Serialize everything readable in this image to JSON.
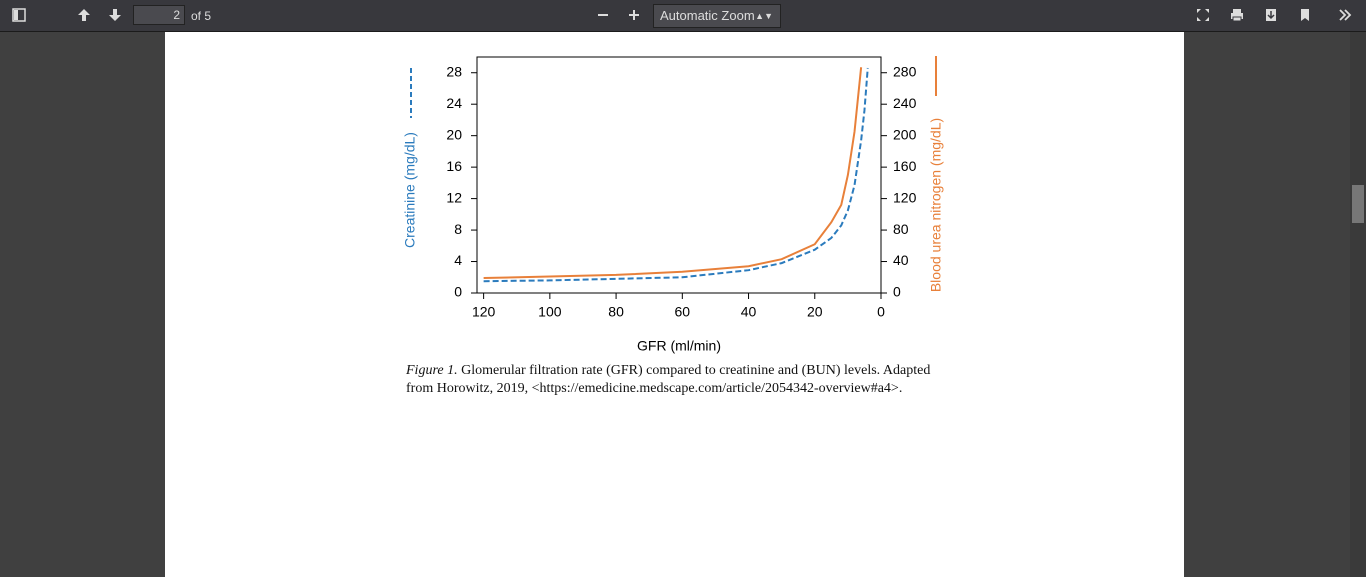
{
  "toolbar": {
    "page_number": "2",
    "page_count": "of 5",
    "zoom": "Automatic Zoom"
  },
  "chart_data": {
    "type": "line",
    "xlabel": "GFR (ml/min)",
    "x": [
      120,
      100,
      80,
      60,
      40,
      30,
      20,
      15,
      12,
      10,
      8,
      6,
      5,
      4
    ],
    "xlim": [
      122,
      0
    ],
    "xticks": [
      120,
      100,
      80,
      60,
      40,
      20,
      0
    ],
    "ylim": [
      0,
      30
    ],
    "yticks": [
      0,
      4,
      8,
      12,
      16,
      20,
      24,
      28
    ],
    "y2lim": [
      0,
      300
    ],
    "y2ticks": [
      0,
      40,
      80,
      120,
      160,
      200,
      240,
      280
    ],
    "series": [
      {
        "name": "Creatinine (mg/dL)",
        "color": "#2b7bbd",
        "dashed": true,
        "values": [
          1.5,
          1.6,
          1.8,
          2.0,
          2.9,
          3.8,
          5.5,
          7.0,
          8.6,
          10.5,
          13.7,
          19.4,
          23.2,
          28.6
        ]
      },
      {
        "name": "Blood urea nitrogen (mg/dL)",
        "color": "#e8803a",
        "axis": "y2",
        "values": [
          19,
          21,
          23,
          27,
          34,
          43,
          62,
          90,
          112,
          150,
          205,
          287,
          null,
          null
        ]
      }
    ]
  },
  "caption": {
    "label": "Figure 1.",
    "lines": [
      "Glomerular filtration rate (GFR) compared to creatinine and (BUN) levels. Adapted",
      "from Horowitz, 2019, <https://emedicine.medscape.com/article/2054342-overview#a4>."
    ]
  }
}
